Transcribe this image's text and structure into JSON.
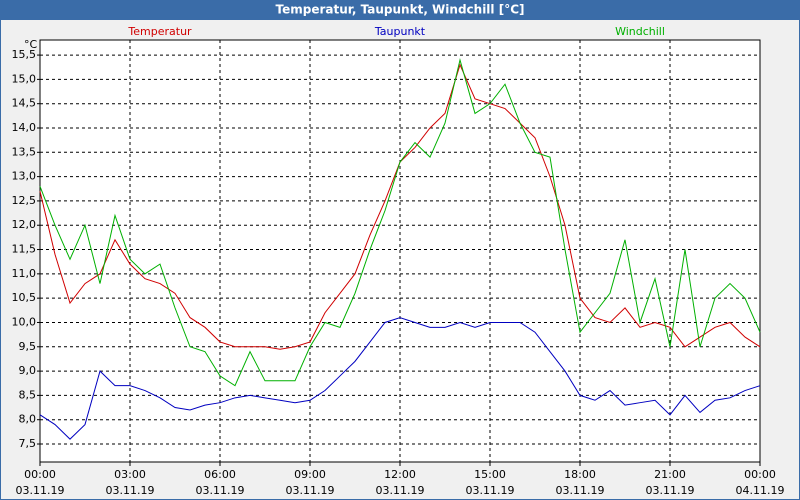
{
  "chart_data": {
    "type": "line",
    "title": "Temperatur, Taupunkt, Windchill [°C]",
    "y_unit": "°C",
    "x": [
      0,
      0.5,
      1,
      1.5,
      2,
      2.5,
      3,
      3.5,
      4,
      4.5,
      5,
      5.5,
      6,
      6.5,
      7,
      7.5,
      8,
      8.5,
      9,
      9.5,
      10,
      10.5,
      11,
      11.5,
      12,
      12.5,
      13,
      13.5,
      14,
      14.5,
      15,
      15.5,
      16,
      16.5,
      17,
      17.5,
      18,
      18.5,
      19,
      19.5,
      20,
      20.5,
      21,
      21.5,
      22,
      22.5,
      23,
      23.5,
      24
    ],
    "series": [
      {
        "name": "Temperatur",
        "color": "#d00000",
        "values": [
          12.7,
          11.4,
          10.4,
          10.8,
          11.0,
          11.7,
          11.2,
          10.9,
          10.8,
          10.6,
          10.1,
          9.9,
          9.6,
          9.5,
          9.5,
          9.5,
          9.45,
          9.5,
          9.6,
          10.2,
          10.6,
          11.0,
          11.8,
          12.5,
          13.3,
          13.6,
          14.0,
          14.3,
          15.3,
          14.6,
          14.5,
          14.4,
          14.1,
          13.8,
          13.0,
          12.0,
          10.5,
          10.1,
          10.0,
          10.3,
          9.9,
          10.0,
          9.9,
          9.5,
          9.7,
          9.9,
          10.0,
          9.7,
          9.5
        ]
      },
      {
        "name": "Taupunkt",
        "color": "#0000c0",
        "values": [
          8.1,
          7.9,
          7.6,
          7.9,
          9.0,
          8.7,
          8.7,
          8.6,
          8.45,
          8.25,
          8.2,
          8.3,
          8.35,
          8.45,
          8.5,
          8.45,
          8.4,
          8.35,
          8.4,
          8.6,
          8.9,
          9.2,
          9.6,
          10.0,
          10.1,
          10.0,
          9.9,
          9.9,
          10.0,
          9.9,
          10.0,
          10.0,
          10.0,
          9.8,
          9.4,
          9.0,
          8.5,
          8.4,
          8.6,
          8.3,
          8.35,
          8.4,
          8.1,
          8.5,
          8.15,
          8.4,
          8.45,
          8.6,
          8.7
        ]
      },
      {
        "name": "Windchill",
        "color": "#00b000",
        "values": [
          12.8,
          12.0,
          11.3,
          12.0,
          10.8,
          12.2,
          11.3,
          11.0,
          11.2,
          10.3,
          9.5,
          9.4,
          8.9,
          8.7,
          9.4,
          8.8,
          8.8,
          8.8,
          9.5,
          10.0,
          9.9,
          10.6,
          11.5,
          12.3,
          13.3,
          13.7,
          13.4,
          14.1,
          15.4,
          14.3,
          14.5,
          14.9,
          14.1,
          13.5,
          13.4,
          11.5,
          9.8,
          10.2,
          10.6,
          11.7,
          10.0,
          10.9,
          9.5,
          11.5,
          9.5,
          10.5,
          10.8,
          10.5,
          9.8
        ]
      }
    ],
    "xlim": [
      0,
      24
    ],
    "xticks": [
      {
        "value": 0,
        "label": "00:00"
      },
      {
        "value": 3,
        "label": "03:00"
      },
      {
        "value": 6,
        "label": "06:00"
      },
      {
        "value": 9,
        "label": "09:00"
      },
      {
        "value": 12,
        "label": "12:00"
      },
      {
        "value": 15,
        "label": "15:00"
      },
      {
        "value": 18,
        "label": "18:00"
      },
      {
        "value": 21,
        "label": "21:00"
      },
      {
        "value": 24,
        "label": "00:00"
      }
    ],
    "xtick_dates": [
      "03.11.19",
      "03.11.19",
      "03.11.19",
      "03.11.19",
      "03.11.19",
      "03.11.19",
      "03.11.19",
      "03.11.19",
      "04.11.19"
    ],
    "ylim": [
      7.13,
      15.81
    ],
    "yticks": [
      {
        "value": 7.5,
        "label": "7,5"
      },
      {
        "value": 8,
        "label": "8,0"
      },
      {
        "value": 8.5,
        "label": "8,5"
      },
      {
        "value": 9,
        "label": "9,0"
      },
      {
        "value": 9.5,
        "label": "9,5"
      },
      {
        "value": 10,
        "label": "10,0"
      },
      {
        "value": 10.5,
        "label": "10,5"
      },
      {
        "value": 11,
        "label": "11,0"
      },
      {
        "value": 11.5,
        "label": "11,5"
      },
      {
        "value": 12,
        "label": "12,0"
      },
      {
        "value": 12.5,
        "label": "12,5"
      },
      {
        "value": 13,
        "label": "13,0"
      },
      {
        "value": 13.5,
        "label": "13,5"
      },
      {
        "value": 14,
        "label": "14,0"
      },
      {
        "value": 14.5,
        "label": "14,5"
      },
      {
        "value": 15,
        "label": "15,0"
      },
      {
        "value": 15.5,
        "label": "15,5"
      }
    ],
    "grid": true
  }
}
